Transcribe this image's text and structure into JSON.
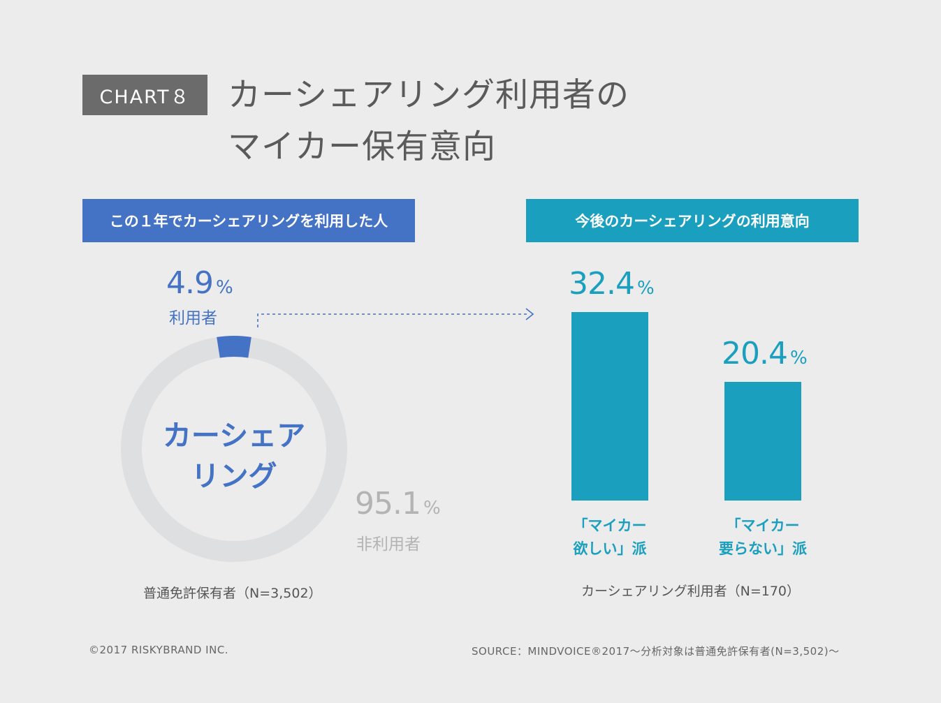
{
  "header": {
    "badge": "CHART８",
    "title_line1": "カーシェアリング利用者の",
    "title_line2": "マイカー保有意向"
  },
  "left_panel": {
    "heading": "この１年でカーシェアリングを利用した人",
    "center_line1": "カーシェア",
    "center_line2": "リング",
    "base_note": "普通免許保有者（N=3,502）"
  },
  "right_panel": {
    "heading": "今後のカーシェアリングの利用意向",
    "base_note": "カーシェアリング利用者（N=170）"
  },
  "footer": {
    "copyright": "©2017 RISKYBRAND INC.",
    "source": "SOURCE：MINDVOICE®2017～分析対象は普通免許保有者(N=3,502)～"
  },
  "colors": {
    "user_blue": "#4472c4",
    "nonuser_gray": "#dedfe1",
    "bar_teal": "#1a9fbf",
    "nonuser_text": "#b3b3b3"
  },
  "chart_data": [
    {
      "type": "pie",
      "variant": "donut",
      "slices": [
        {
          "label": "利用者",
          "value": 4.9,
          "value_text": "4.9",
          "unit": "%"
        },
        {
          "label": "非利用者",
          "value": 95.1,
          "value_text": "95.1",
          "unit": "%"
        }
      ]
    },
    {
      "type": "bar",
      "categories": [
        {
          "line1": "「マイカー",
          "line2": "欲しい」派"
        },
        {
          "line1": "「マイカー",
          "line2": "要らない」派"
        }
      ],
      "values": [
        32.4,
        20.4
      ],
      "value_texts": [
        "32.4",
        "20.4"
      ],
      "unit": "%",
      "ylim": [
        0,
        32.4
      ]
    }
  ]
}
